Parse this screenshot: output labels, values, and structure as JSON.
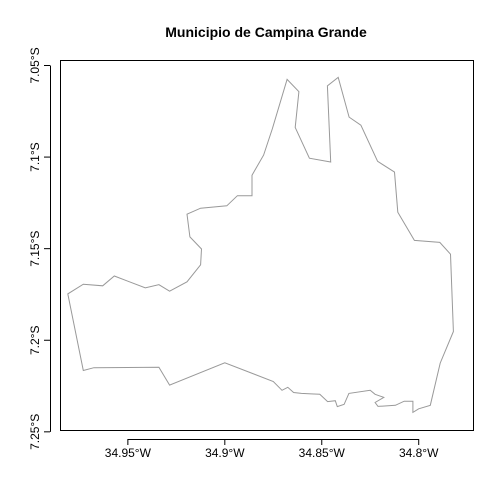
{
  "title": "Municipio de Campina Grande",
  "chart_data": {
    "type": "map",
    "title": "Municipio de Campina Grande",
    "xlabel": "",
    "ylabel": "",
    "xlim": [
      -34.985,
      -34.772
    ],
    "ylim": [
      -7.249,
      -7.047
    ],
    "x_ticks": [
      {
        "value": -34.95,
        "label": "34.95°W"
      },
      {
        "value": -34.9,
        "label": "34.9°W"
      },
      {
        "value": -34.85,
        "label": "34.85°W"
      },
      {
        "value": -34.8,
        "label": "34.8°W"
      }
    ],
    "y_ticks": [
      {
        "value": -7.05,
        "label": "7.05°S"
      },
      {
        "value": -7.1,
        "label": "7.1°S"
      },
      {
        "value": -7.15,
        "label": "7.15°S"
      },
      {
        "value": -7.2,
        "label": "7.2°S"
      },
      {
        "value": -7.25,
        "label": "7.25°S"
      }
    ],
    "grid": false,
    "boundary": {
      "name": "Municipio de Campina Grande",
      "stroke": "#999999",
      "coordinates": [
        [
          -34.8679,
          -7.0576
        ],
        [
          -34.8618,
          -7.0643
        ],
        [
          -34.8637,
          -7.0838
        ],
        [
          -34.8564,
          -7.1006
        ],
        [
          -34.8454,
          -7.1027
        ],
        [
          -34.8471,
          -7.0611
        ],
        [
          -34.8415,
          -7.0565
        ],
        [
          -34.8359,
          -7.0782
        ],
        [
          -34.8298,
          -7.0826
        ],
        [
          -34.8212,
          -7.1023
        ],
        [
          -34.8125,
          -7.1082
        ],
        [
          -34.8108,
          -7.1301
        ],
        [
          -34.8022,
          -7.1455
        ],
        [
          -34.7891,
          -7.1466
        ],
        [
          -34.7836,
          -7.153
        ],
        [
          -34.7821,
          -7.1952
        ],
        [
          -34.7889,
          -7.2125
        ],
        [
          -34.794,
          -7.2355
        ],
        [
          -34.8,
          -7.2374
        ],
        [
          -34.803,
          -7.2394
        ],
        [
          -34.803,
          -7.2333
        ],
        [
          -34.8075,
          -7.2333
        ],
        [
          -34.812,
          -7.2355
        ],
        [
          -34.821,
          -7.2361
        ],
        [
          -34.8225,
          -7.234
        ],
        [
          -34.818,
          -7.2312
        ],
        [
          -34.8225,
          -7.2295
        ],
        [
          -34.825,
          -7.2273
        ],
        [
          -34.836,
          -7.229
        ],
        [
          -34.8385,
          -7.235
        ],
        [
          -34.842,
          -7.2362
        ],
        [
          -34.843,
          -7.233
        ],
        [
          -34.847,
          -7.2335
        ],
        [
          -34.851,
          -7.2295
        ],
        [
          -34.8555,
          -7.2293
        ],
        [
          -34.8605,
          -7.229
        ],
        [
          -34.8645,
          -7.2285
        ],
        [
          -34.8675,
          -7.2257
        ],
        [
          -34.8705,
          -7.2273
        ],
        [
          -34.875,
          -7.2225
        ],
        [
          -34.9,
          -7.2123
        ],
        [
          -34.9285,
          -7.2245
        ],
        [
          -34.934,
          -7.2147
        ],
        [
          -34.9675,
          -7.215
        ],
        [
          -34.973,
          -7.2165
        ],
        [
          -34.981,
          -7.1747
        ],
        [
          -34.973,
          -7.1694
        ],
        [
          -34.963,
          -7.1703
        ],
        [
          -34.957,
          -7.1649
        ],
        [
          -34.941,
          -7.1714
        ],
        [
          -34.934,
          -7.1697
        ],
        [
          -34.9285,
          -7.1732
        ],
        [
          -34.9195,
          -7.1681
        ],
        [
          -34.9125,
          -7.1588
        ],
        [
          -34.912,
          -7.1502
        ],
        [
          -34.918,
          -7.1436
        ],
        [
          -34.9195,
          -7.1312
        ],
        [
          -34.9125,
          -7.1279
        ],
        [
          -34.899,
          -7.1266
        ],
        [
          -34.8935,
          -7.1211
        ],
        [
          -34.886,
          -7.1211
        ],
        [
          -34.886,
          -7.1099
        ],
        [
          -34.88,
          -7.0989
        ],
        [
          -34.8755,
          -7.0846
        ],
        [
          -34.8679,
          -7.0576
        ]
      ]
    }
  }
}
